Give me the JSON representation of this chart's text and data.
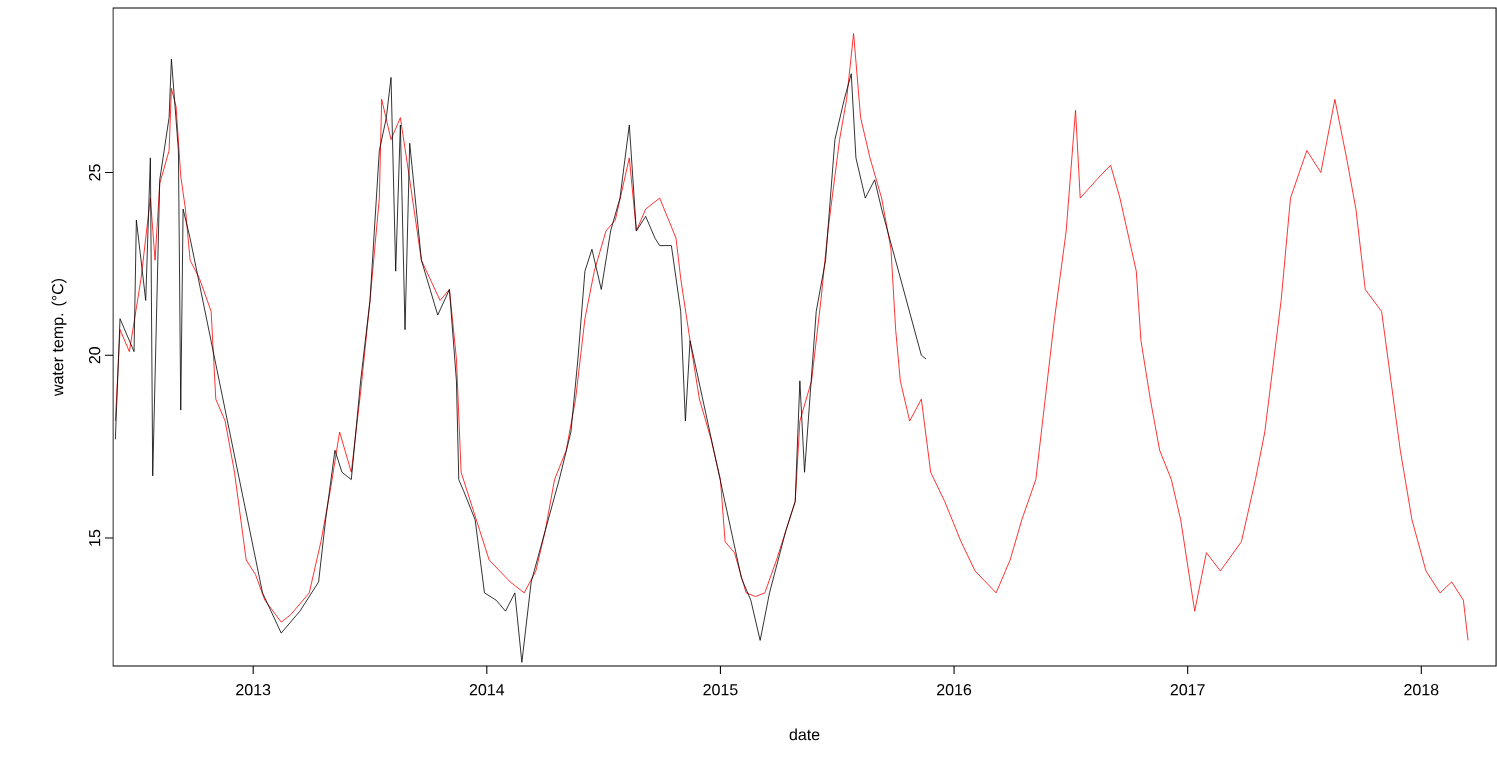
{
  "chart_data": {
    "type": "line",
    "xlabel": "date",
    "ylabel": "water temp. (°C)",
    "xlim": [
      2012.4,
      2018.32
    ],
    "ylim": [
      11.5,
      29.5
    ],
    "xticks": [
      2013,
      2014,
      2015,
      2016,
      2017,
      2018
    ],
    "yticks": [
      15,
      20,
      25
    ],
    "marker": "none",
    "line_style": "solid",
    "series": [
      {
        "color": "#ff0000",
        "x": [
          2012.41,
          2012.43,
          2012.47,
          2012.52,
          2012.56,
          2012.58,
          2012.6,
          2012.64,
          2012.65,
          2012.67,
          2012.69,
          2012.71,
          2012.73,
          2012.77,
          2012.82,
          2012.84,
          2012.88,
          2012.92,
          2012.97,
          2013.01,
          2013.05,
          2013.12,
          2013.16,
          2013.24,
          2013.29,
          2013.33,
          2013.37,
          2013.42,
          2013.46,
          2013.5,
          2013.54,
          2013.55,
          2013.59,
          2013.63,
          2013.67,
          2013.72,
          2013.8,
          2013.84,
          2013.87,
          2013.89,
          2013.93,
          2013.97,
          2014.01,
          2014.1,
          2014.16,
          2014.21,
          2014.25,
          2014.29,
          2014.34,
          2014.38,
          2014.42,
          2014.46,
          2014.51,
          2014.55,
          2014.61,
          2014.64,
          2014.68,
          2014.74,
          2014.81,
          2014.83,
          2014.87,
          2014.91,
          2014.96,
          2015.0,
          2015.02,
          2015.06,
          2015.11,
          2015.15,
          2015.19,
          2015.24,
          2015.28,
          2015.32,
          2015.34,
          2015.39,
          2015.43,
          2015.46,
          2015.51,
          2015.54,
          2015.57,
          2015.6,
          2015.64,
          2015.69,
          2015.73,
          2015.75,
          2015.77,
          2015.81,
          2015.86,
          2015.9,
          2015.96,
          2016.03,
          2016.09,
          2016.18,
          2016.24,
          2016.29,
          2016.35,
          2016.39,
          2016.43,
          2016.48,
          2016.52,
          2016.54,
          2016.61,
          2016.67,
          2016.71,
          2016.78,
          2016.8,
          2016.84,
          2016.88,
          2016.93,
          2016.97,
          2017.03,
          2017.08,
          2017.14,
          2017.23,
          2017.29,
          2017.33,
          2017.4,
          2017.44,
          2017.51,
          2017.57,
          2017.63,
          2017.68,
          2017.72,
          2017.76,
          2017.83,
          2017.87,
          2017.91,
          2017.96,
          2018.02,
          2018.08,
          2018.13,
          2018.18,
          2018.2
        ],
        "values": [
          18.2,
          20.7,
          20.1,
          22.1,
          24.3,
          22.6,
          24.7,
          25.6,
          27.3,
          26.8,
          24.9,
          24.0,
          22.6,
          22.1,
          21.2,
          18.8,
          18.2,
          16.8,
          14.4,
          14.0,
          13.3,
          12.7,
          12.9,
          13.5,
          14.9,
          16.3,
          17.9,
          16.8,
          19.0,
          21.5,
          24.3,
          27.0,
          25.9,
          26.5,
          24.8,
          22.6,
          21.5,
          21.8,
          19.9,
          16.8,
          16.0,
          15.2,
          14.4,
          13.8,
          13.5,
          14.1,
          15.2,
          16.6,
          17.4,
          18.8,
          21.0,
          22.3,
          23.4,
          23.7,
          25.4,
          23.4,
          24.0,
          24.3,
          23.2,
          22.1,
          20.4,
          18.8,
          17.7,
          16.6,
          14.9,
          14.6,
          13.5,
          13.4,
          13.5,
          14.4,
          15.2,
          16.0,
          18.2,
          19.3,
          21.5,
          23.4,
          25.9,
          27.0,
          28.8,
          26.5,
          25.4,
          24.3,
          22.9,
          20.7,
          19.3,
          18.2,
          18.8,
          16.8,
          16.0,
          14.9,
          14.1,
          13.5,
          14.4,
          15.5,
          16.6,
          18.8,
          21.0,
          23.4,
          26.7,
          24.3,
          24.8,
          25.2,
          24.3,
          22.3,
          20.4,
          18.8,
          17.4,
          16.6,
          15.5,
          13.0,
          14.6,
          14.1,
          14.9,
          16.6,
          17.9,
          21.5,
          24.3,
          25.6,
          25.0,
          27.0,
          25.4,
          24.0,
          21.8,
          21.2,
          19.3,
          17.4,
          15.5,
          14.1,
          13.5,
          13.8,
          13.3,
          12.2
        ]
      },
      {
        "color": "#000000",
        "x": [
          2012.41,
          2012.43,
          2012.49,
          2012.5,
          2012.54,
          2012.56,
          2012.57,
          2012.6,
          2012.64,
          2012.65,
          2012.68,
          2012.69,
          2012.7,
          2012.73,
          2013.04,
          2013.12,
          2013.2,
          2013.28,
          2013.31,
          2013.35,
          2013.38,
          2013.42,
          2013.46,
          2013.5,
          2013.54,
          2013.57,
          2013.59,
          2013.61,
          2013.63,
          2013.65,
          2013.67,
          2013.72,
          2013.79,
          2013.84,
          2013.87,
          2013.88,
          2013.9,
          2013.95,
          2013.99,
          2014.04,
          2014.08,
          2014.12,
          2014.15,
          2014.19,
          2014.25,
          2014.31,
          2014.36,
          2014.39,
          2014.42,
          2014.45,
          2014.49,
          2014.53,
          2014.57,
          2014.61,
          2014.64,
          2014.68,
          2014.72,
          2014.74,
          2014.79,
          2014.83,
          2014.85,
          2014.87,
          2015.09,
          2015.13,
          2015.17,
          2015.21,
          2015.28,
          2015.32,
          2015.34,
          2015.36,
          2015.41,
          2015.45,
          2015.49,
          2015.53,
          2015.56,
          2015.58,
          2015.62,
          2015.66,
          2015.69,
          2015.86,
          2015.88
        ],
        "values": [
          17.7,
          21.0,
          20.1,
          23.7,
          21.5,
          25.4,
          16.7,
          24.8,
          26.5,
          28.1,
          25.6,
          18.5,
          24.0,
          23.2,
          13.5,
          12.4,
          13.0,
          13.8,
          15.5,
          17.4,
          16.8,
          16.6,
          19.3,
          21.5,
          25.6,
          26.5,
          27.6,
          22.3,
          26.3,
          20.7,
          25.8,
          22.6,
          21.1,
          21.8,
          19.3,
          16.6,
          16.3,
          15.5,
          13.5,
          13.3,
          13.0,
          13.5,
          11.6,
          13.8,
          15.2,
          16.6,
          17.9,
          19.9,
          22.3,
          22.9,
          21.8,
          23.4,
          24.3,
          26.3,
          23.4,
          23.8,
          23.2,
          23.0,
          23.0,
          21.2,
          18.2,
          20.4,
          13.9,
          13.3,
          12.2,
          13.5,
          15.2,
          16.0,
          19.3,
          16.8,
          21.2,
          22.6,
          25.9,
          27.0,
          27.7,
          25.4,
          24.3,
          24.8,
          24.0,
          20.0,
          19.9
        ]
      }
    ]
  }
}
